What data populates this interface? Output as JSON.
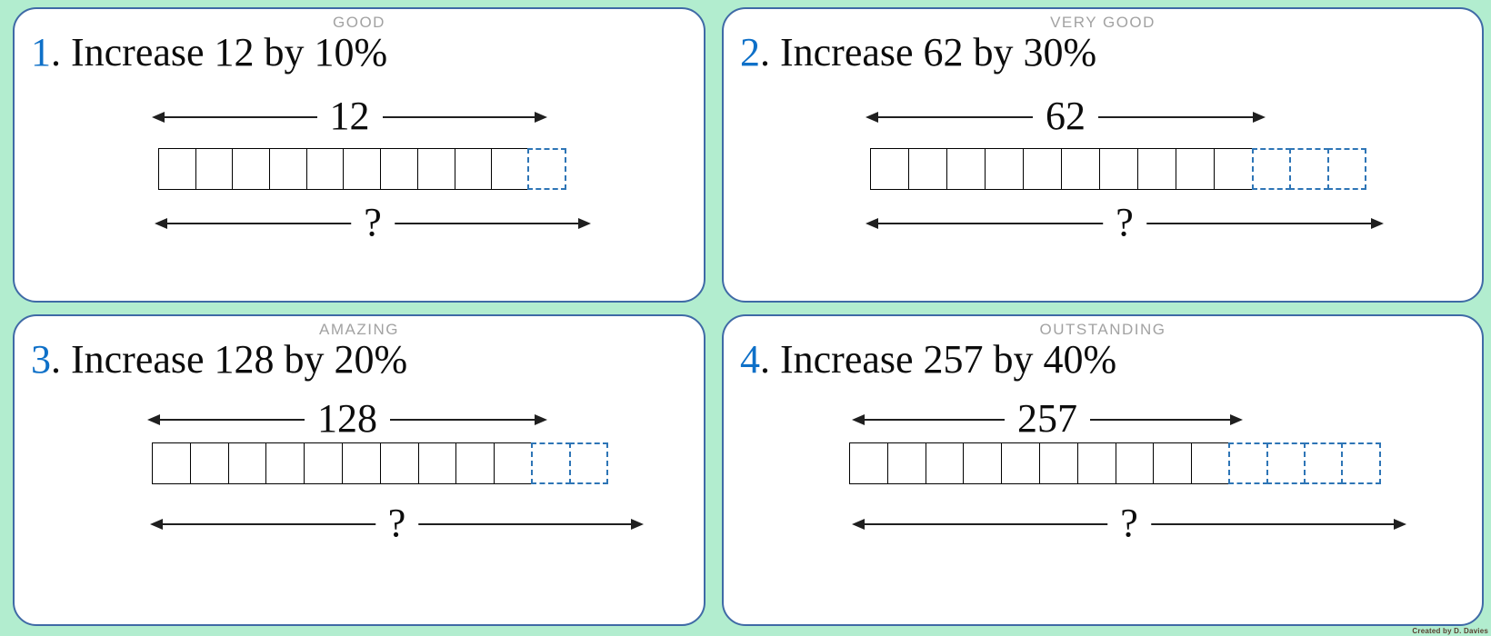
{
  "page": {
    "background_color": "#b2edcf",
    "card_border_color": "#3f6aa6",
    "credit_text": "Created by D. Davies"
  },
  "colors": {
    "question_number_blue": "#0e70c8",
    "dashed_unit_blue": "#2e75b6",
    "award_label_gray": "#a2a2a2",
    "arrow_ink": "#1f1f1f"
  },
  "cards": [
    {
      "award": "GOOD",
      "number": "1",
      "title_rest": ". Increase 12 by 10%",
      "base_value": "12",
      "total_label": "?",
      "solid_units": 10,
      "dashed_units": 1
    },
    {
      "award": "VERY GOOD",
      "number": "2",
      "title_rest": ". Increase 62 by 30%",
      "base_value": "62",
      "total_label": "?",
      "solid_units": 10,
      "dashed_units": 3
    },
    {
      "award": "AMAZING",
      "number": "3",
      "title_rest": ". Increase 128 by 20%",
      "base_value": "128",
      "total_label": "?",
      "solid_units": 10,
      "dashed_units": 2
    },
    {
      "award": "OUTSTANDING",
      "number": "4",
      "title_rest": ". Increase 257 by 40%",
      "base_value": "257",
      "total_label": "?",
      "solid_units": 10,
      "dashed_units": 4
    }
  ]
}
